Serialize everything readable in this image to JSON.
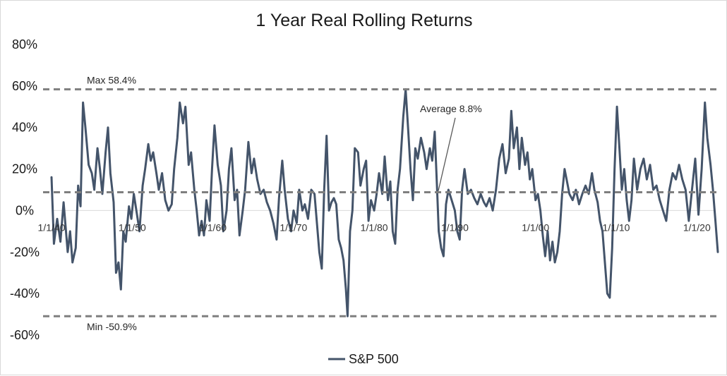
{
  "chart_data": {
    "type": "line",
    "title": "1 Year Real Rolling Returns",
    "xlabel": "",
    "ylabel": "",
    "ylim": [
      -60,
      80
    ],
    "yticks": [
      80,
      60,
      40,
      20,
      0,
      -20,
      -40,
      -60
    ],
    "ytick_labels": [
      "80%",
      "60%",
      "40%",
      "20%",
      "0%",
      "-20%",
      "-40%",
      "-60%"
    ],
    "xlim": [
      1940.0,
      2022.6
    ],
    "xtick_labels": [
      {
        "label": "1/1/40",
        "x": 1940
      },
      {
        "label": "1/1/50",
        "x": 1950
      },
      {
        "label": "1/1/60",
        "x": 1960
      },
      {
        "label": "1/1/70",
        "x": 1970
      },
      {
        "label": "1/1/80",
        "x": 1980
      },
      {
        "label": "1/1/90",
        "x": 1990
      },
      {
        "label": "1/1/00",
        "x": 2000
      },
      {
        "label": "1/1/10",
        "x": 2010
      },
      {
        "label": "1/1/20",
        "x": 2020
      }
    ],
    "grid": false,
    "legend": "bottom",
    "reference_lines": [
      {
        "value": 58.4,
        "label": "Max 58.4%"
      },
      {
        "value": 8.8,
        "label": "Average 8.8%"
      },
      {
        "value": -50.9,
        "label": "Min -50.9%"
      }
    ],
    "series": [
      {
        "name": "S&P 500",
        "color": "#44546a",
        "points": [
          [
            1940.0,
            16
          ],
          [
            1940.3,
            -16
          ],
          [
            1940.7,
            -4
          ],
          [
            1941.1,
            -15
          ],
          [
            1941.5,
            4
          ],
          [
            1942.0,
            -20
          ],
          [
            1942.3,
            -10
          ],
          [
            1942.6,
            -25
          ],
          [
            1943.0,
            -18
          ],
          [
            1943.3,
            12
          ],
          [
            1943.6,
            2
          ],
          [
            1943.9,
            52
          ],
          [
            1944.2,
            40
          ],
          [
            1944.6,
            22
          ],
          [
            1945.0,
            18
          ],
          [
            1945.3,
            10
          ],
          [
            1945.7,
            30
          ],
          [
            1946.0,
            20
          ],
          [
            1946.3,
            8
          ],
          [
            1946.7,
            28
          ],
          [
            1947.0,
            40
          ],
          [
            1947.3,
            18
          ],
          [
            1947.7,
            4
          ],
          [
            1948.0,
            -30
          ],
          [
            1948.3,
            -25
          ],
          [
            1948.6,
            -38
          ],
          [
            1948.9,
            -10
          ],
          [
            1949.2,
            -15
          ],
          [
            1949.6,
            2
          ],
          [
            1949.9,
            -4
          ],
          [
            1950.2,
            8
          ],
          [
            1950.6,
            -2
          ],
          [
            1950.9,
            -10
          ],
          [
            1951.3,
            12
          ],
          [
            1951.6,
            20
          ],
          [
            1952.0,
            32
          ],
          [
            1952.3,
            24
          ],
          [
            1952.6,
            28
          ],
          [
            1953.0,
            18
          ],
          [
            1953.3,
            10
          ],
          [
            1953.7,
            18
          ],
          [
            1954.1,
            5
          ],
          [
            1954.5,
            0
          ],
          [
            1954.9,
            3
          ],
          [
            1955.2,
            20
          ],
          [
            1955.6,
            35
          ],
          [
            1955.9,
            52
          ],
          [
            1956.3,
            42
          ],
          [
            1956.6,
            50
          ],
          [
            1957.0,
            22
          ],
          [
            1957.3,
            28
          ],
          [
            1957.7,
            10
          ],
          [
            1958.0,
            0
          ],
          [
            1958.3,
            -12
          ],
          [
            1958.6,
            -5
          ],
          [
            1958.9,
            -12
          ],
          [
            1959.2,
            5
          ],
          [
            1959.6,
            -5
          ],
          [
            1959.9,
            20
          ],
          [
            1960.2,
            41
          ],
          [
            1960.6,
            22
          ],
          [
            1961.0,
            12
          ],
          [
            1961.3,
            -10
          ],
          [
            1961.7,
            0
          ],
          [
            1962.0,
            20
          ],
          [
            1962.3,
            30
          ],
          [
            1962.7,
            5
          ],
          [
            1963.0,
            10
          ],
          [
            1963.3,
            -12
          ],
          [
            1963.7,
            0
          ],
          [
            1964.0,
            10
          ],
          [
            1964.4,
            33
          ],
          [
            1964.8,
            18
          ],
          [
            1965.1,
            25
          ],
          [
            1965.5,
            15
          ],
          [
            1965.9,
            8
          ],
          [
            1966.3,
            10
          ],
          [
            1966.7,
            4
          ],
          [
            1967.1,
            0
          ],
          [
            1967.5,
            -6
          ],
          [
            1967.9,
            -14
          ],
          [
            1968.2,
            6
          ],
          [
            1968.6,
            24
          ],
          [
            1968.9,
            10
          ],
          [
            1969.3,
            -4
          ],
          [
            1969.7,
            -10
          ],
          [
            1970.0,
            0
          ],
          [
            1970.4,
            -6
          ],
          [
            1970.7,
            10
          ],
          [
            1971.1,
            0
          ],
          [
            1971.4,
            3
          ],
          [
            1971.8,
            -4
          ],
          [
            1972.2,
            10
          ],
          [
            1972.6,
            8
          ],
          [
            1972.9,
            -6
          ],
          [
            1973.2,
            -20
          ],
          [
            1973.5,
            -28
          ],
          [
            1973.8,
            10
          ],
          [
            1974.1,
            36
          ],
          [
            1974.4,
            0
          ],
          [
            1974.7,
            4
          ],
          [
            1975.0,
            6
          ],
          [
            1975.3,
            3
          ],
          [
            1975.6,
            -14
          ],
          [
            1975.9,
            -18
          ],
          [
            1976.2,
            -24
          ],
          [
            1976.5,
            -38
          ],
          [
            1976.7,
            -50.9
          ],
          [
            1977.0,
            -10
          ],
          [
            1977.3,
            0
          ],
          [
            1977.6,
            30
          ],
          [
            1978.0,
            28
          ],
          [
            1978.3,
            12
          ],
          [
            1978.7,
            20
          ],
          [
            1979.0,
            24
          ],
          [
            1979.3,
            -5
          ],
          [
            1979.6,
            5
          ],
          [
            1980.0,
            0
          ],
          [
            1980.3,
            8
          ],
          [
            1980.6,
            18
          ],
          [
            1981.0,
            8
          ],
          [
            1981.3,
            26
          ],
          [
            1981.7,
            5
          ],
          [
            1982.0,
            14
          ],
          [
            1982.3,
            -10
          ],
          [
            1982.6,
            -16
          ],
          [
            1982.9,
            10
          ],
          [
            1983.2,
            20
          ],
          [
            1983.6,
            45
          ],
          [
            1983.9,
            58.4
          ],
          [
            1984.2,
            40
          ],
          [
            1984.5,
            20
          ],
          [
            1984.8,
            5
          ],
          [
            1985.1,
            30
          ],
          [
            1985.4,
            25
          ],
          [
            1985.8,
            35
          ],
          [
            1986.2,
            28
          ],
          [
            1986.5,
            20
          ],
          [
            1986.9,
            30
          ],
          [
            1987.2,
            24
          ],
          [
            1987.5,
            38
          ],
          [
            1987.8,
            10
          ],
          [
            1988.0,
            -10
          ],
          [
            1988.3,
            -18
          ],
          [
            1988.6,
            -22
          ],
          [
            1988.9,
            3
          ],
          [
            1989.2,
            10
          ],
          [
            1989.6,
            5
          ],
          [
            1990.0,
            0
          ],
          [
            1990.3,
            -10
          ],
          [
            1990.6,
            -14
          ],
          [
            1990.9,
            10
          ],
          [
            1991.2,
            20
          ],
          [
            1991.6,
            8
          ],
          [
            1992.0,
            10
          ],
          [
            1992.4,
            6
          ],
          [
            1992.8,
            3
          ],
          [
            1993.2,
            8
          ],
          [
            1993.6,
            4
          ],
          [
            1993.9,
            2
          ],
          [
            1994.3,
            6
          ],
          [
            1994.7,
            0
          ],
          [
            1995.1,
            10
          ],
          [
            1995.5,
            25
          ],
          [
            1995.9,
            32
          ],
          [
            1996.3,
            18
          ],
          [
            1996.7,
            25
          ],
          [
            1997.0,
            48
          ],
          [
            1997.3,
            30
          ],
          [
            1997.7,
            40
          ],
          [
            1998.0,
            20
          ],
          [
            1998.3,
            35
          ],
          [
            1998.7,
            22
          ],
          [
            1999.0,
            28
          ],
          [
            1999.3,
            15
          ],
          [
            1999.6,
            20
          ],
          [
            2000.0,
            5
          ],
          [
            2000.3,
            8
          ],
          [
            2000.6,
            0
          ],
          [
            2000.9,
            -12
          ],
          [
            2001.2,
            -22
          ],
          [
            2001.5,
            -10
          ],
          [
            2001.8,
            -24
          ],
          [
            2002.1,
            -15
          ],
          [
            2002.4,
            -25
          ],
          [
            2002.7,
            -20
          ],
          [
            2003.0,
            -10
          ],
          [
            2003.3,
            8
          ],
          [
            2003.6,
            20
          ],
          [
            2003.9,
            14
          ],
          [
            2004.2,
            8
          ],
          [
            2004.6,
            5
          ],
          [
            2005.0,
            10
          ],
          [
            2005.4,
            3
          ],
          [
            2005.8,
            8
          ],
          [
            2006.2,
            12
          ],
          [
            2006.6,
            8
          ],
          [
            2007.0,
            18
          ],
          [
            2007.3,
            10
          ],
          [
            2007.7,
            4
          ],
          [
            2008.0,
            -5
          ],
          [
            2008.3,
            -10
          ],
          [
            2008.6,
            -25
          ],
          [
            2008.9,
            -40
          ],
          [
            2009.2,
            -42
          ],
          [
            2009.5,
            -18
          ],
          [
            2009.8,
            20
          ],
          [
            2010.1,
            50
          ],
          [
            2010.4,
            30
          ],
          [
            2010.7,
            10
          ],
          [
            2011.0,
            20
          ],
          [
            2011.3,
            5
          ],
          [
            2011.6,
            -5
          ],
          [
            2011.9,
            5
          ],
          [
            2012.2,
            25
          ],
          [
            2012.6,
            10
          ],
          [
            2013.0,
            20
          ],
          [
            2013.4,
            25
          ],
          [
            2013.8,
            15
          ],
          [
            2014.2,
            22
          ],
          [
            2014.6,
            10
          ],
          [
            2015.0,
            12
          ],
          [
            2015.4,
            5
          ],
          [
            2015.8,
            0
          ],
          [
            2016.2,
            -5
          ],
          [
            2016.6,
            10
          ],
          [
            2017.0,
            18
          ],
          [
            2017.4,
            15
          ],
          [
            2017.8,
            22
          ],
          [
            2018.2,
            15
          ],
          [
            2018.6,
            10
          ],
          [
            2019.0,
            -5
          ],
          [
            2019.4,
            10
          ],
          [
            2019.8,
            25
          ],
          [
            2020.2,
            -2
          ],
          [
            2020.6,
            20
          ],
          [
            2021.0,
            52
          ],
          [
            2021.3,
            35
          ],
          [
            2021.7,
            22
          ],
          [
            2022.0,
            10
          ],
          [
            2022.3,
            -5
          ],
          [
            2022.6,
            -20
          ]
        ]
      }
    ]
  },
  "legend": {
    "label": "S&P 500"
  }
}
